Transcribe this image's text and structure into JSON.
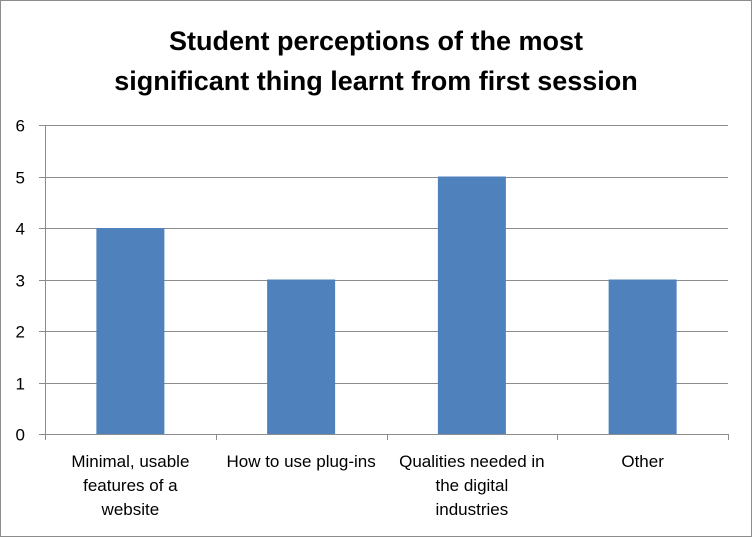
{
  "chart_data": {
    "type": "bar",
    "title_lines": [
      "Student perceptions of the most",
      "significant thing learnt from first session"
    ],
    "categories": [
      "Minimal, usable features of a website",
      "How to use plug-ins",
      "Qualities needed in the digital industries",
      "Other"
    ],
    "category_lines": [
      [
        "Minimal, usable",
        "features of a",
        "website"
      ],
      [
        "How to use plug-ins"
      ],
      [
        "Qualities needed in",
        "the digital",
        "industries"
      ],
      [
        "Other"
      ]
    ],
    "values": [
      4,
      3,
      5,
      3
    ],
    "ylim": [
      0,
      6
    ],
    "yticks": [
      "0",
      "1",
      "2",
      "3",
      "4",
      "5",
      "6"
    ],
    "grid": true,
    "legend": "none",
    "colors": {
      "bar": "#4f81bd",
      "grid": "#8c8c8c",
      "axis": "#8c8c8c"
    }
  }
}
